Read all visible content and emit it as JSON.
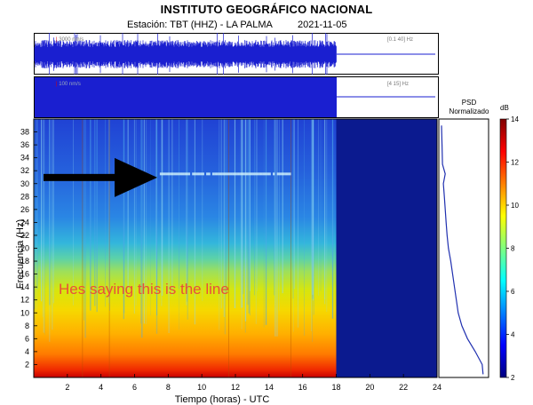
{
  "header": {
    "title": "INSTITUTO GEOGRÁFICO NACIONAL",
    "station": "Estación: TBT (HHZ) - LA PALMA",
    "date": "2021-11-05"
  },
  "traces": [
    {
      "scale_label": "3000 nm/s",
      "filter_label": "[0.1 40] Hz"
    },
    {
      "scale_label": "100 nm/s",
      "filter_label": "[4 15] Hz"
    }
  ],
  "psd": {
    "label_line1": "PSD",
    "label_line2": "Normalizado"
  },
  "colorbar": {
    "unit": "dB",
    "ticks": [
      2,
      4,
      6,
      8,
      10,
      12,
      14
    ]
  },
  "annotation": {
    "text": "Hes saying this is the line"
  },
  "colors": {
    "trace_blue": "#1a1fd0",
    "no_data_blue": "#0b1a8f",
    "arrow": "#000000",
    "annotation": "#e8503a",
    "psd_line": "#2030b0"
  },
  "chart_data": {
    "type": "heatmap",
    "xlabel": "Tiempo (horas) - UTC",
    "ylabel": "Frecuencia (Hz)",
    "xlim": [
      0,
      24
    ],
    "ylim": [
      0,
      40
    ],
    "x_ticks": [
      2,
      4,
      6,
      8,
      10,
      12,
      14,
      16,
      18,
      20,
      22,
      24
    ],
    "y_ticks": [
      2,
      4,
      6,
      8,
      10,
      12,
      14,
      16,
      18,
      20,
      22,
      24,
      26,
      28,
      30,
      32,
      34,
      36,
      38
    ],
    "data_end_hour": 18,
    "value_unit": "dB",
    "value_range": [
      2,
      14
    ],
    "frequency_profile_db": [
      {
        "freq": 0.5,
        "db": 14
      },
      {
        "freq": 2,
        "db": 12.5
      },
      {
        "freq": 4,
        "db": 11
      },
      {
        "freq": 6,
        "db": 10.2
      },
      {
        "freq": 8,
        "db": 9.6
      },
      {
        "freq": 10,
        "db": 9
      },
      {
        "freq": 12,
        "db": 8.3
      },
      {
        "freq": 14,
        "db": 7.6
      },
      {
        "freq": 16,
        "db": 7
      },
      {
        "freq": 18,
        "db": 6.3
      },
      {
        "freq": 20,
        "db": 5.3
      },
      {
        "freq": 24,
        "db": 4.7
      },
      {
        "freq": 28,
        "db": 4.3
      },
      {
        "freq": 32,
        "db": 4
      },
      {
        "freq": 36,
        "db": 3.8
      },
      {
        "freq": 40,
        "db": 3.6
      }
    ],
    "highlighted_band": {
      "freq": 31.5,
      "hour_start": 7.5,
      "hour_end": 15.5
    },
    "psd_normalized": {
      "freq": [
        0.5,
        2,
        4,
        6,
        8,
        10,
        12,
        14,
        16,
        18,
        20,
        22,
        24,
        26,
        28,
        30,
        31.5,
        33,
        36,
        39
      ],
      "value": [
        0.92,
        0.9,
        0.75,
        0.58,
        0.46,
        0.38,
        0.34,
        0.3,
        0.26,
        0.22,
        0.17,
        0.14,
        0.12,
        0.1,
        0.08,
        0.06,
        0.1,
        0.04,
        0.03,
        0.02
      ]
    }
  }
}
